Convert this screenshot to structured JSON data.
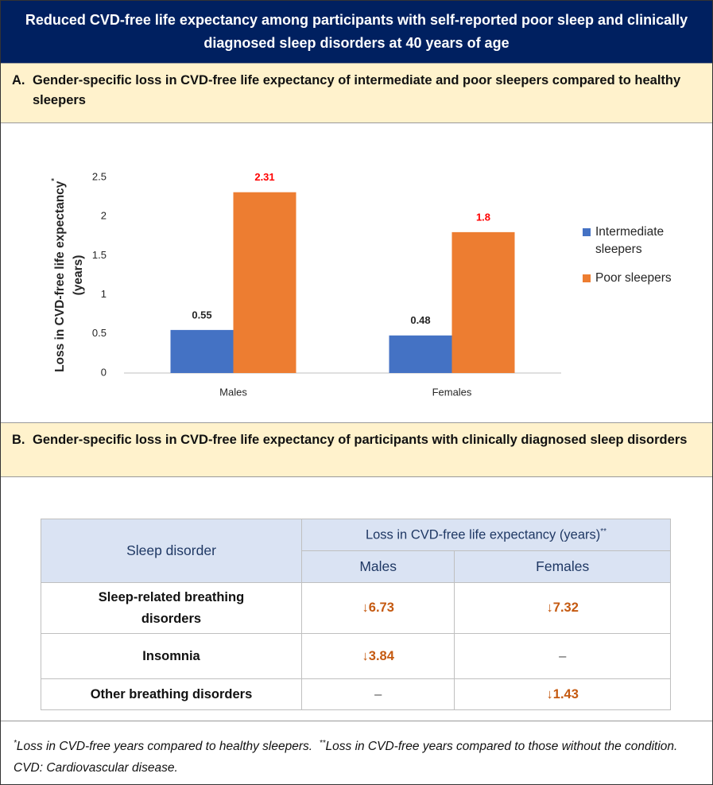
{
  "header": {
    "title": "Reduced CVD-free life expectancy among participants with self-reported poor sleep and clinically diagnosed sleep disorders at 40 years of age"
  },
  "section_a": {
    "letter": "A.",
    "heading": "Gender-specific loss in CVD-free life expectancy of intermediate and poor sleepers compared to healthy sleepers"
  },
  "chart_data": {
    "type": "bar",
    "ylabel": "Loss in CVD-free life expectancy",
    "ylabel_note": "*",
    "ylabel_unit": "(years)",
    "categories": [
      "Males",
      "Females"
    ],
    "series": [
      {
        "name": "Intermediate sleepers",
        "color": "#4472c4",
        "label_color": "#262626",
        "values": [
          0.55,
          0.48
        ]
      },
      {
        "name": "Poor sleepers",
        "color": "#ed7d31",
        "label_color": "#ff0000",
        "values": [
          2.31,
          1.8
        ]
      }
    ],
    "ylim": [
      0,
      2.5
    ],
    "yticks": [
      0,
      0.5,
      1,
      1.5,
      2,
      2.5
    ],
    "grid": false,
    "legend": "right"
  },
  "section_b": {
    "letter": "B.",
    "heading": "Gender-specific loss in CVD-free life expectancy of participants with clinically diagnosed sleep disorders"
  },
  "table": {
    "row_header": "Sleep disorder",
    "group_header": "Loss in CVD-free life expectancy (years)",
    "group_note": "**",
    "columns": [
      "Males",
      "Females"
    ],
    "rows": [
      [
        "Sleep-related breathing disorders",
        "↓6.73",
        "↓7.32"
      ],
      [
        "Insomnia",
        "↓3.84",
        "–"
      ],
      [
        "Other breathing disorders",
        "–",
        "↓1.43"
      ]
    ]
  },
  "footnote": {
    "mark1": "*",
    "text1": "Loss in CVD-free years compared to healthy sleepers.",
    "mark2": "**",
    "text2": "Loss in CVD-free years compared to those without the condition. CVD: Cardiovascular disease."
  }
}
